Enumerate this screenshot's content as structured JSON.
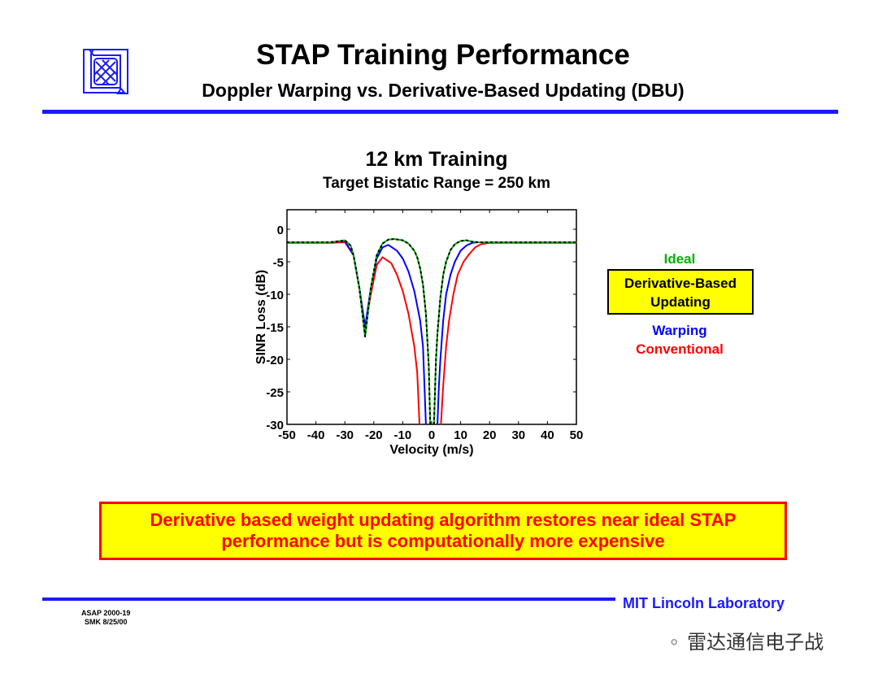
{
  "header": {
    "title": "STAP Training Performance",
    "subtitle": "Doppler Warping vs. Derivative-Based Updating (DBU)"
  },
  "legend": {
    "ideal": "Ideal",
    "dbu": [
      "Derivative-Based",
      "Updating"
    ],
    "warping": "Warping",
    "conventional": "Conventional"
  },
  "callout": [
    "Derivative based weight updating algorithm restores near ideal STAP",
    "performance but is computationally more expensive"
  ],
  "footer": {
    "lab": "MIT Lincoln Laboratory",
    "code": "ASAP 2000-19",
    "author_date": "SMK 8/25/00",
    "watermark": "雷达通信电子战"
  },
  "colors": {
    "accent": "#1a1aff",
    "ideal": "#00b000",
    "dbu": "#000000",
    "warping": "#0000ff",
    "conventional": "#ff0000",
    "callout_bg": "#ffff00"
  },
  "chart_data": {
    "type": "line",
    "title": "12 km Training",
    "subtitle": "Target Bistatic Range = 250 km",
    "xlabel": "Velocity (m/s)",
    "ylabel": "SINR Loss (dB)",
    "xlim": [
      -50,
      50
    ],
    "ylim": [
      -30,
      3
    ],
    "xticks": [
      -50,
      -40,
      -30,
      -20,
      -10,
      0,
      10,
      20,
      30,
      40,
      50
    ],
    "yticks": [
      0,
      -5,
      -10,
      -15,
      -20,
      -25,
      -30
    ],
    "grid": false,
    "series": [
      {
        "name": "Conventional",
        "color": "#ff0000",
        "style": "solid",
        "x": [
          -50,
          -35,
          -30,
          -27,
          -25,
          -23,
          -21,
          -19,
          -17,
          -14,
          -12,
          -10,
          -8,
          -6,
          -5,
          -4.2,
          null,
          3.2,
          4,
          5,
          6,
          7.5,
          9,
          11,
          13,
          15,
          17,
          20,
          50
        ],
        "y": [
          -2.1,
          -2.1,
          -2,
          -4,
          -9,
          -15,
          -10,
          -5.5,
          -4.3,
          -5.2,
          -7,
          -9.5,
          -13,
          -18,
          -22,
          -30,
          null,
          -30,
          -24,
          -18,
          -14,
          -10,
          -7,
          -5,
          -3.8,
          -2.8,
          -2.3,
          -2.1,
          -2.1
        ]
      },
      {
        "name": "Warping",
        "color": "#0000ff",
        "style": "solid",
        "x": [
          -50,
          -35,
          -30,
          -27,
          -25,
          -23,
          -21,
          -19,
          -17,
          -15,
          -12,
          -10,
          -8,
          -6,
          -4,
          -3,
          -2,
          null,
          2,
          2.5,
          3,
          4,
          5,
          6.5,
          8,
          10,
          12,
          14,
          16,
          50
        ],
        "y": [
          -2,
          -2,
          -1.8,
          -4,
          -9,
          -15,
          -9,
          -4.5,
          -2.8,
          -2.4,
          -3.3,
          -4.5,
          -6.5,
          -9.5,
          -14,
          -18,
          -30,
          null,
          -30,
          -24,
          -20,
          -14,
          -10,
          -7,
          -5,
          -3.3,
          -2.5,
          -2.1,
          -2,
          -2
        ]
      },
      {
        "name": "Ideal",
        "color": "#00b000",
        "style": "solid",
        "x": [
          -50,
          -35,
          -30,
          -28,
          -27,
          -25,
          -23,
          -21,
          -19,
          -17,
          -15,
          -13,
          -10,
          -8,
          -6,
          -5,
          -4,
          -3,
          -2,
          -1,
          -0.5,
          null,
          0.8,
          1.5,
          2,
          3,
          4,
          5,
          6.5,
          8,
          10,
          12,
          14,
          16,
          50
        ],
        "y": [
          -2,
          -2,
          -1.7,
          -2.5,
          -4,
          -9,
          -16.5,
          -9,
          -4,
          -2.2,
          -1.6,
          -1.5,
          -1.7,
          -2.2,
          -3.3,
          -4.3,
          -6,
          -8.5,
          -13,
          -21,
          -30,
          null,
          -30,
          -20,
          -16,
          -10.5,
          -7,
          -5,
          -3.2,
          -2.3,
          -1.8,
          -1.7,
          -1.9,
          -2,
          -2
        ]
      },
      {
        "name": "Derivative-Based Updating",
        "color": "#000000",
        "style": "dashed",
        "x": [
          -50,
          -35,
          -30,
          -28,
          -27,
          -25,
          -23,
          -21,
          -19,
          -17,
          -15,
          -13,
          -10,
          -8,
          -6,
          -5,
          -4,
          -3,
          -2,
          -1,
          -0.5,
          null,
          0.8,
          1.5,
          2,
          3,
          4,
          5,
          6.5,
          8,
          10,
          12,
          14,
          16,
          50
        ],
        "y": [
          -2,
          -2,
          -1.7,
          -2.5,
          -4,
          -9,
          -16.5,
          -9,
          -4,
          -2.2,
          -1.6,
          -1.5,
          -1.7,
          -2.2,
          -3.3,
          -4.3,
          -6,
          -8.5,
          -13,
          -21,
          -30,
          null,
          -30,
          -20,
          -16,
          -10.5,
          -7,
          -5,
          -3.2,
          -2.3,
          -1.8,
          -1.7,
          -1.9,
          -2,
          -2
        ]
      }
    ]
  }
}
